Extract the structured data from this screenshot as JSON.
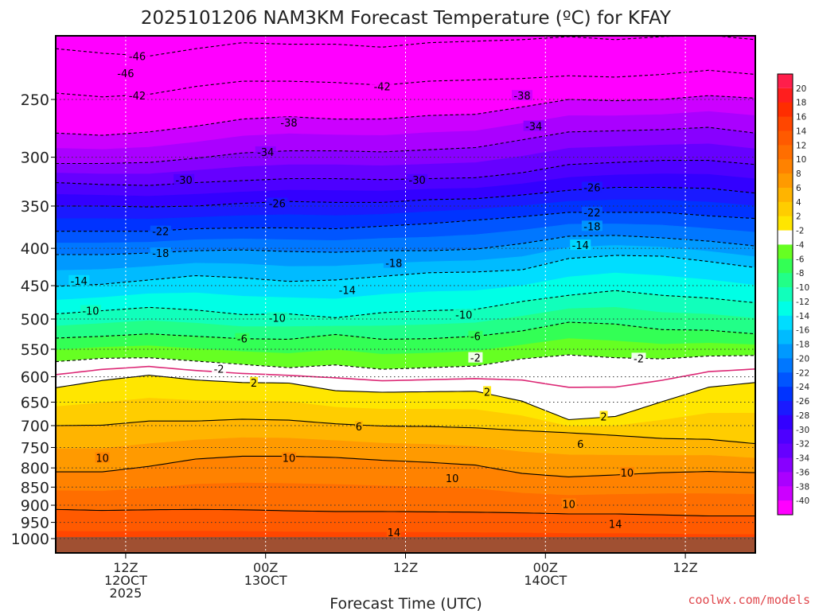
{
  "chart_data": {
    "type": "heatmap",
    "title": "2025101206 NAM3KM Forecast Temperature (ºC) for KFAY",
    "xlabel": "Forecast Time (UTC)",
    "ylabel": "",
    "credit": "coolwx.com/models",
    "y_axis": {
      "scale": "log-pressure",
      "inverted": true,
      "range": [
        1010,
        200
      ],
      "ticks": [
        250,
        300,
        350,
        400,
        450,
        500,
        550,
        600,
        650,
        700,
        750,
        800,
        850,
        900,
        950,
        1000
      ],
      "tick_labels": [
        "250",
        "300",
        "350",
        "400",
        "450",
        "500",
        "550",
        "600",
        "650",
        "700",
        "750",
        "800",
        "850",
        "900",
        "950",
        "1000"
      ]
    },
    "x_axis": {
      "range_hours": [
        0,
        60
      ],
      "ticks": [
        {
          "hour": 6,
          "label": "12Z",
          "day": "12OCT",
          "year": "2025"
        },
        {
          "hour": 18,
          "label": "00Z",
          "day": "13OCT",
          "year": ""
        },
        {
          "hour": 30,
          "label": "12Z",
          "day": "",
          "year": ""
        },
        {
          "hour": 42,
          "label": "00Z",
          "day": "14OCT",
          "year": ""
        },
        {
          "hour": 54,
          "label": "12Z",
          "day": "",
          "year": ""
        }
      ]
    },
    "colorbar": {
      "levels": [
        20,
        18,
        16,
        14,
        12,
        10,
        8,
        6,
        4,
        2,
        -2,
        -4,
        -6,
        -8,
        -10,
        -12,
        -14,
        -16,
        -18,
        -20,
        -22,
        -24,
        -26,
        -28,
        -30,
        -32,
        -34,
        -36,
        -38,
        -40
      ],
      "labels": [
        "20",
        "18",
        "16",
        "14",
        "12",
        "10",
        "8",
        "6",
        "4",
        "2",
        "-2",
        "-4",
        "-6",
        "-8",
        "-10",
        "-12",
        "-14",
        "-16",
        "-18",
        "-20",
        "-22",
        "-24",
        "-26",
        "-28",
        "-30",
        "-32",
        "-34",
        "-36",
        "-38",
        "-40"
      ],
      "colors": [
        "#ff1e1e",
        "#ff2d00",
        "#ff4600",
        "#ff5a00",
        "#ff6e00",
        "#ff8200",
        "#ff9a00",
        "#ffb400",
        "#ffcd00",
        "#ffe600",
        "#ffffff",
        "#66ff22",
        "#33ff55",
        "#22ff88",
        "#11ffbb",
        "#00ffe6",
        "#00ddff",
        "#00bbff",
        "#0099ff",
        "#0077ff",
        "#0055ff",
        "#0033ff",
        "#1a1aff",
        "#3300ff",
        "#4d00ff",
        "#6600ff",
        "#8800ff",
        "#aa00ff",
        "#cc00ff",
        "#ff00ff"
      ],
      "top_color": "#ff1e4b",
      "bottom_color": "#ff00ff"
    },
    "freezing_line": {
      "color": "#dc2875"
    },
    "surface_fill": "#a05032",
    "isotherms": {
      "values": [
        -46,
        -42,
        -38,
        -34,
        -30,
        -26,
        -22,
        -18,
        -14,
        -10,
        -6,
        -2,
        2,
        6,
        10,
        14
      ],
      "labels": [
        "-46",
        "-42",
        "-38",
        "-34",
        "-30",
        "-26",
        "-22",
        "-18",
        "-14",
        "-10",
        "-6",
        "-2",
        "2",
        "6",
        "10",
        "14"
      ],
      "hours": [
        0,
        4,
        8,
        12,
        16,
        20,
        24,
        28,
        32,
        36,
        40,
        44,
        48,
        52,
        56,
        60
      ],
      "pressure_hpa": {
        "-46": [
          213,
          216,
          218,
          213,
          209,
          210,
          210,
          212,
          209,
          208,
          207,
          205,
          207,
          205,
          204,
          207
        ],
        "-42": [
          245,
          248,
          246,
          240,
          236,
          236,
          237,
          239,
          236,
          235,
          234,
          232,
          233,
          231,
          228,
          231
        ],
        "-38": [
          278,
          280,
          277,
          272,
          266,
          264,
          266,
          266,
          263,
          262,
          256,
          250,
          251,
          250,
          247,
          249
        ],
        "-34": [
          306,
          306,
          305,
          301,
          296,
          294,
          294,
          295,
          293,
          291,
          284,
          277,
          276,
          275,
          273,
          278
        ],
        "-30": [
          325,
          327,
          328,
          325,
          323,
          321,
          321,
          322,
          321,
          320,
          315,
          307,
          305,
          303,
          303,
          307
        ],
        "-26": [
          350,
          350,
          351,
          350,
          347,
          345,
          346,
          346,
          343,
          342,
          338,
          333,
          330,
          330,
          331,
          336
        ],
        "-22": [
          379,
          379,
          379,
          376,
          375,
          375,
          376,
          373,
          370,
          366,
          362,
          357,
          357,
          357,
          361,
          364
        ],
        "-18": [
          408,
          408,
          406,
          403,
          402,
          404,
          405,
          403,
          403,
          401,
          394,
          385,
          384,
          387,
          391,
          397
        ],
        "-14": [
          451,
          448,
          442,
          436,
          439,
          444,
          442,
          437,
          432,
          431,
          428,
          413,
          409,
          410,
          417,
          425
        ],
        "-10": [
          492,
          487,
          482,
          486,
          493,
          492,
          498,
          490,
          487,
          485,
          473,
          464,
          457,
          464,
          468,
          475
        ],
        "-6": [
          531,
          528,
          524,
          528,
          532,
          533,
          525,
          533,
          532,
          528,
          519,
          505,
          508,
          517,
          518,
          524
        ],
        "-2": [
          572,
          566,
          565,
          571,
          577,
          583,
          578,
          586,
          583,
          580,
          567,
          560,
          565,
          567,
          562,
          561
        ],
        "2": [
          621,
          607,
          597,
          606,
          611,
          612,
          627,
          630,
          629,
          628,
          648,
          687,
          680,
          649,
          620,
          611
        ],
        "6": [
          700,
          699,
          690,
          690,
          686,
          688,
          696,
          701,
          702,
          705,
          711,
          716,
          722,
          729,
          731,
          741
        ],
        "10": [
          810,
          810,
          796,
          778,
          771,
          771,
          774,
          781,
          786,
          793,
          814,
          823,
          818,
          812,
          809,
          812
        ],
        "14": [
          912,
          915,
          913,
          912,
          913,
          916,
          918,
          918,
          919,
          920,
          922,
          925,
          925,
          928,
          931,
          931
        ]
      }
    },
    "label_positions": [
      {
        "t": -46,
        "h": 7,
        "p": 218
      },
      {
        "t": -46,
        "h": 6,
        "p": 230
      },
      {
        "t": -42,
        "h": 7,
        "p": 247
      },
      {
        "t": -42,
        "h": 28,
        "p": 240
      },
      {
        "t": -38,
        "h": 20,
        "p": 269
      },
      {
        "t": -38,
        "h": 40,
        "p": 247
      },
      {
        "t": -34,
        "h": 18,
        "p": 295
      },
      {
        "t": -34,
        "h": 41,
        "p": 272
      },
      {
        "t": -30,
        "h": 11,
        "p": 322
      },
      {
        "t": -30,
        "h": 31,
        "p": 322
      },
      {
        "t": -26,
        "h": 19,
        "p": 347
      },
      {
        "t": -26,
        "h": 46,
        "p": 330
      },
      {
        "t": -22,
        "h": 9,
        "p": 379
      },
      {
        "t": -22,
        "h": 46,
        "p": 357
      },
      {
        "t": -18,
        "h": 46,
        "p": 373
      },
      {
        "t": -18,
        "h": 9,
        "p": 406
      },
      {
        "t": -18,
        "h": 29,
        "p": 419
      },
      {
        "t": -14,
        "h": 2,
        "p": 443
      },
      {
        "t": -14,
        "h": 25,
        "p": 456
      },
      {
        "t": -14,
        "h": 45,
        "p": 396
      },
      {
        "t": -10,
        "h": 3,
        "p": 487
      },
      {
        "t": -10,
        "h": 19,
        "p": 498
      },
      {
        "t": -10,
        "h": 35,
        "p": 493
      },
      {
        "t": -6,
        "h": 16,
        "p": 532
      },
      {
        "t": -6,
        "h": 36,
        "p": 528
      },
      {
        "t": -2,
        "h": 14,
        "p": 585
      },
      {
        "t": -2,
        "h": 36,
        "p": 565
      },
      {
        "t": -2,
        "h": 50,
        "p": 566
      },
      {
        "t": 2,
        "h": 17,
        "p": 611
      },
      {
        "t": 2,
        "h": 37,
        "p": 629
      },
      {
        "t": 2,
        "h": 47,
        "p": 680
      },
      {
        "t": 6,
        "h": 26,
        "p": 702
      },
      {
        "t": 6,
        "h": 45,
        "p": 742
      },
      {
        "t": 10,
        "h": 4,
        "p": 775
      },
      {
        "t": 10,
        "h": 20,
        "p": 775
      },
      {
        "t": 10,
        "h": 34,
        "p": 826
      },
      {
        "t": 10,
        "h": 44,
        "p": 896
      },
      {
        "t": 10,
        "h": 49,
        "p": 812
      },
      {
        "t": 14,
        "h": 29,
        "p": 980
      },
      {
        "t": 14,
        "h": 48,
        "p": 955
      }
    ]
  }
}
